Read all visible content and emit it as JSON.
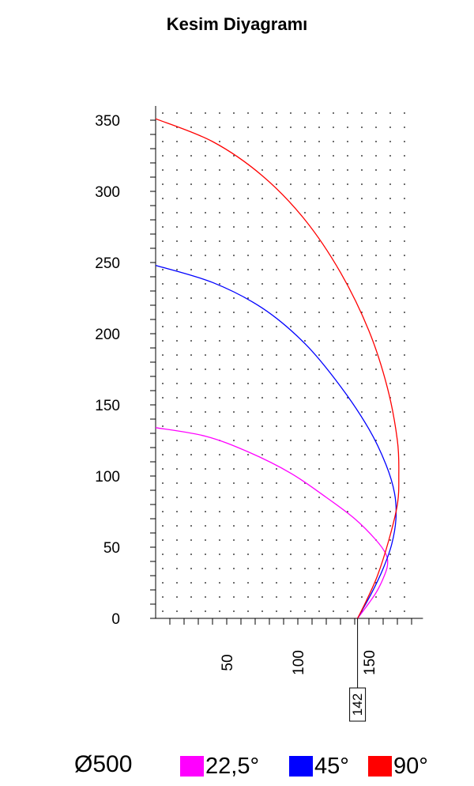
{
  "chart_data": {
    "type": "line",
    "title": "Kesim Diyagramı",
    "xlabel": "",
    "ylabel": "",
    "xlim": [
      0,
      188
    ],
    "ylim": [
      0,
      360
    ],
    "x_ticks": [
      50,
      100,
      150
    ],
    "y_ticks": [
      0,
      50,
      100,
      150,
      200,
      250,
      300,
      350
    ],
    "grid": "dotted",
    "marker": {
      "x": 142,
      "label": "142"
    },
    "series": [
      {
        "name": "22,5°",
        "color": "#ff00ff",
        "points": [
          [
            0,
            134
          ],
          [
            35,
            128
          ],
          [
            65,
            117
          ],
          [
            95,
            102
          ],
          [
            120,
            85
          ],
          [
            140,
            70
          ],
          [
            155,
            55
          ],
          [
            162,
            45
          ],
          [
            163,
            37
          ],
          [
            160,
            28
          ],
          [
            155,
            18
          ],
          [
            148,
            8
          ],
          [
            142,
            0
          ]
        ]
      },
      {
        "name": "45°",
        "color": "#0000ff",
        "points": [
          [
            0,
            248
          ],
          [
            40,
            236
          ],
          [
            75,
            218
          ],
          [
            105,
            193
          ],
          [
            130,
            163
          ],
          [
            150,
            133
          ],
          [
            162,
            108
          ],
          [
            168,
            88
          ],
          [
            169,
            70
          ],
          [
            166,
            52
          ],
          [
            160,
            35
          ],
          [
            152,
            18
          ],
          [
            142,
            0
          ]
        ]
      },
      {
        "name": "90°",
        "color": "#ff0000",
        "points": [
          [
            0,
            351
          ],
          [
            40,
            335
          ],
          [
            75,
            311
          ],
          [
            105,
            280
          ],
          [
            130,
            243
          ],
          [
            150,
            202
          ],
          [
            163,
            162
          ],
          [
            170,
            125
          ],
          [
            171,
            100
          ],
          [
            170,
            80
          ],
          [
            164,
            55
          ],
          [
            156,
            30
          ],
          [
            148,
            12
          ],
          [
            142,
            0
          ]
        ]
      }
    ]
  },
  "legend": {
    "diameter": "Ø500",
    "items": [
      {
        "label": "22,5°",
        "color": "#ff00ff"
      },
      {
        "label": "45°",
        "color": "#0000ff"
      },
      {
        "label": "90°",
        "color": "#ff0000"
      }
    ]
  }
}
